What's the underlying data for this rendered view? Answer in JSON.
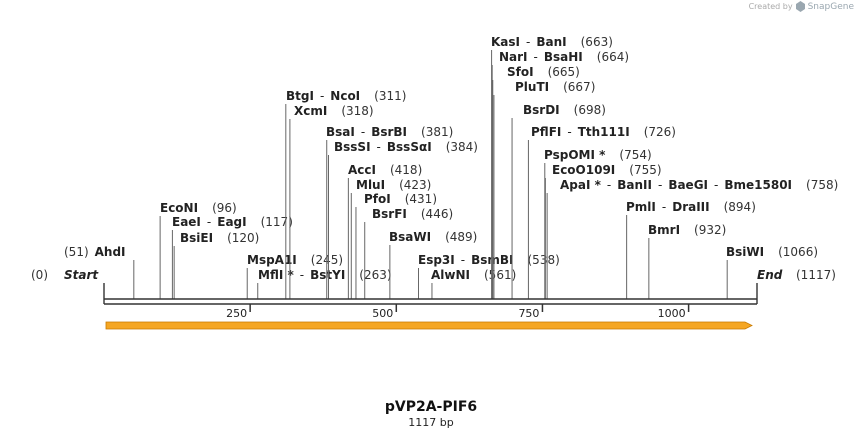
{
  "watermark": {
    "created_by": "Created by",
    "brand": "SnapGene"
  },
  "map": {
    "name": "pVP2A-PIF6",
    "length_label": "1117 bp",
    "start_label": "Start",
    "end_label": "End",
    "start_pos": "(0)",
    "end_pos": "(1117)",
    "total_bp": 1117,
    "ticks": [
      {
        "pos": 250,
        "label": "250"
      },
      {
        "pos": 500,
        "label": "500"
      },
      {
        "pos": 750,
        "label": "750"
      },
      {
        "pos": 1000,
        "label": "1000"
      }
    ],
    "sites": [
      {
        "id": "ahdi",
        "parts": [
          "(51)",
          "AhdI"
        ],
        "pos": 51
      },
      {
        "id": "econi",
        "parts": [
          "EcoNI",
          "(96)"
        ],
        "pos": 96
      },
      {
        "id": "eaei",
        "parts": [
          "EaeI",
          "-",
          "EagI",
          "(117)"
        ],
        "pos": 117
      },
      {
        "id": "bsiei",
        "parts": [
          "BsiEI",
          "(120)"
        ],
        "pos": 120
      },
      {
        "id": "mspa1i",
        "parts": [
          "MspA1I",
          "(245)"
        ],
        "pos": 245
      },
      {
        "id": "mfli",
        "parts": [
          "MflI *",
          "-",
          "BstYI",
          "(263)"
        ],
        "pos": 263
      },
      {
        "id": "btgi",
        "parts": [
          "BtgI",
          "-",
          "NcoI",
          "(311)"
        ],
        "pos": 311
      },
      {
        "id": "xcmi",
        "parts": [
          "XcmI",
          "(318)"
        ],
        "pos": 318
      },
      {
        "id": "bsai",
        "parts": [
          "BsaI",
          "-",
          "BsrBI",
          "(381)"
        ],
        "pos": 381
      },
      {
        "id": "bsssi",
        "parts": [
          "BssSI",
          "-",
          "BssSαI",
          "(384)"
        ],
        "pos": 384
      },
      {
        "id": "acci",
        "parts": [
          "AccI",
          "(418)"
        ],
        "pos": 418
      },
      {
        "id": "mlui",
        "parts": [
          "MluI",
          "(423)"
        ],
        "pos": 423
      },
      {
        "id": "pfoi",
        "parts": [
          "PfoI",
          "(431)"
        ],
        "pos": 431
      },
      {
        "id": "bsrfi",
        "parts": [
          "BsrFI",
          "(446)"
        ],
        "pos": 446
      },
      {
        "id": "bsawi",
        "parts": [
          "BsaWI",
          "(489)"
        ],
        "pos": 489
      },
      {
        "id": "esp3i",
        "parts": [
          "Esp3I",
          "-",
          "BsmBI",
          "(538)"
        ],
        "pos": 538
      },
      {
        "id": "alwni",
        "parts": [
          "AlwNI",
          "(561)"
        ],
        "pos": 561
      },
      {
        "id": "kasi",
        "parts": [
          "KasI",
          "-",
          "BanI",
          "(663)"
        ],
        "pos": 663
      },
      {
        "id": "nari",
        "parts": [
          "NarI",
          "-",
          "BsaHI",
          "(664)"
        ],
        "pos": 664
      },
      {
        "id": "sfoi",
        "parts": [
          "SfoI",
          "(665)"
        ],
        "pos": 665
      },
      {
        "id": "pluti",
        "parts": [
          "PluTI",
          "(667)"
        ],
        "pos": 667
      },
      {
        "id": "bsrdi",
        "parts": [
          "BsrDI",
          "(698)"
        ],
        "pos": 698
      },
      {
        "id": "pflfi",
        "parts": [
          "PflFI",
          "-",
          "Tth111I",
          "(726)"
        ],
        "pos": 726
      },
      {
        "id": "pspomi",
        "parts": [
          "PspOMI *",
          "(754)"
        ],
        "pos": 754
      },
      {
        "id": "eco0109i",
        "parts": [
          "EcoO109I",
          "(755)"
        ],
        "pos": 755
      },
      {
        "id": "apai",
        "parts": [
          "ApaI *",
          "-",
          "BanII",
          "-",
          "BaeGI",
          "-",
          "Bme1580I",
          "(758)"
        ],
        "pos": 758
      },
      {
        "id": "pmli",
        "parts": [
          "PmlI",
          "-",
          "DraIII",
          "(894)"
        ],
        "pos": 894
      },
      {
        "id": "bmri",
        "parts": [
          "BmrI",
          "(932)"
        ],
        "pos": 932
      },
      {
        "id": "bsiwi",
        "parts": [
          "BsiWI",
          "(1066)"
        ],
        "pos": 1066
      }
    ]
  },
  "colors": {
    "arrow_fill": "#f5a623",
    "arrow_edge": "#c97a00",
    "line": "#333333"
  }
}
